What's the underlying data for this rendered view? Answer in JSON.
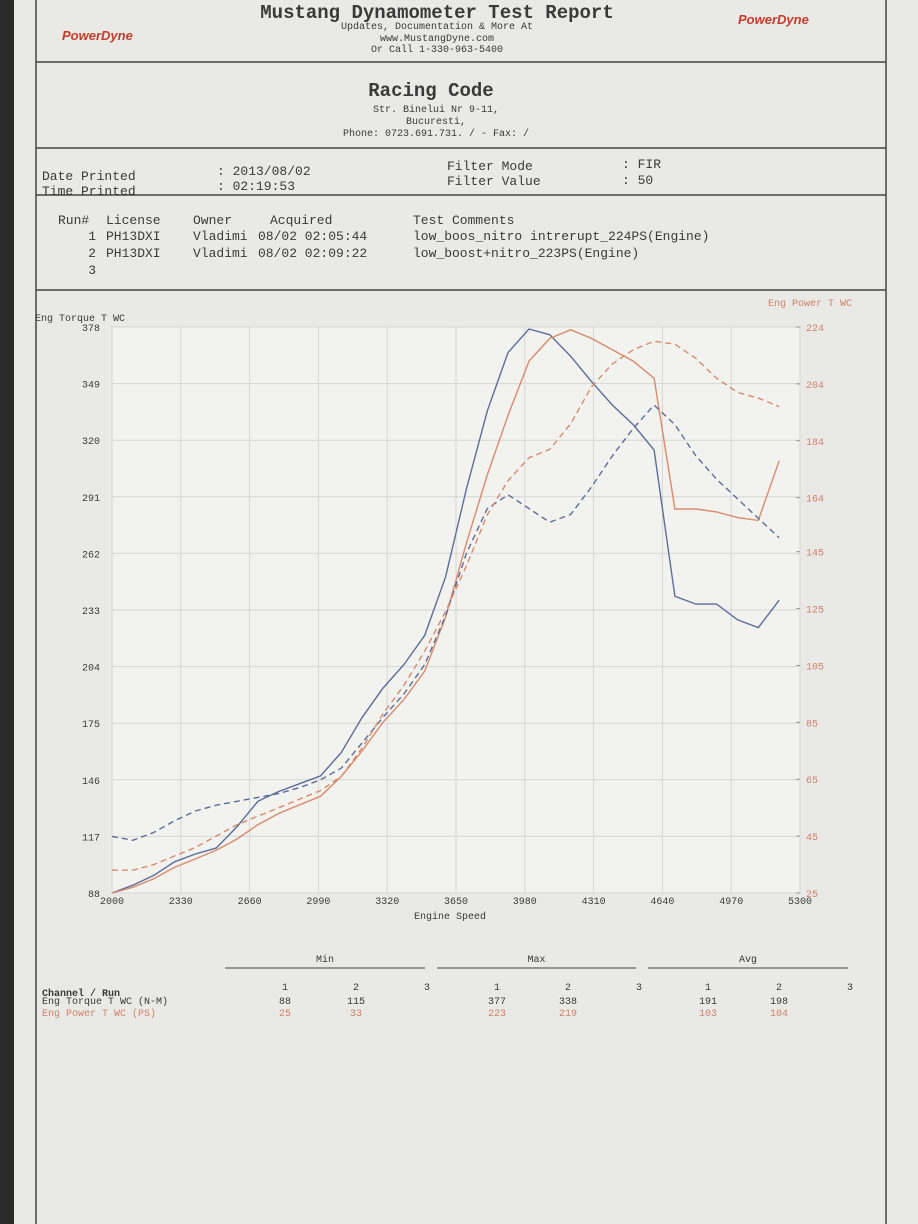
{
  "header": {
    "title": "Mustang Dynamometer Test Report",
    "lines": [
      "Updates, Documentation & More At",
      "www.MustangDyne.com",
      "Or Call 1-330-963-5400"
    ],
    "logo": "PowerDyne"
  },
  "shop": {
    "name": "Racing Code",
    "address": [
      "Str. Binelui Nr 9-11,",
      "Bucuresti,",
      "Phone: 0723.691.731. /  - Fax:  /"
    ]
  },
  "info": {
    "date_label": "Date Printed",
    "date": ": 2013/08/02",
    "time_label": "Time Printed",
    "time": ": 02:19:53",
    "filter_mode_label": "Filter Mode",
    "filter_mode": ": FIR",
    "filter_value_label": "Filter Value",
    "filter_value": ": 50"
  },
  "runs": {
    "columns": [
      "Run#",
      "License",
      "Owner",
      "Acquired",
      "Test Comments"
    ],
    "rows": [
      [
        "1",
        "PH13DXI",
        "Vladimi",
        "08/02 02:05:44",
        "low_boos_nitro intrerupt_224PS(Engine)"
      ],
      [
        "2",
        "PH13DXI",
        "Vladimi",
        "08/02 02:09:22",
        "low_boost+nitro_223PS(Engine)"
      ],
      [
        "3"
      ]
    ]
  },
  "chart_data": {
    "type": "line",
    "ylabel": "Eng Torque T WC",
    "y2label": "Eng Power T WC",
    "xlabel": "Engine Speed",
    "xlim": [
      2000,
      5300
    ],
    "xticks": [
      2000,
      2330,
      2660,
      2990,
      3320,
      3650,
      3980,
      4310,
      4640,
      4970,
      5300
    ],
    "ylim": [
      88,
      378
    ],
    "yticks": [
      88,
      117,
      146,
      175,
      204,
      233,
      262,
      291,
      320,
      349,
      378
    ],
    "y2lim": [
      25,
      224
    ],
    "y2ticks": [
      25,
      45,
      65,
      85,
      105,
      125,
      145,
      164,
      184,
      204,
      224
    ],
    "grid": true,
    "x": [
      2000,
      2100,
      2200,
      2300,
      2400,
      2500,
      2600,
      2700,
      2800,
      2900,
      3000,
      3100,
      3200,
      3300,
      3400,
      3500,
      3600,
      3700,
      3800,
      3900,
      4000,
      4100,
      4200,
      4300,
      4400,
      4500,
      4600,
      4700,
      4800,
      4900,
      5000,
      5100,
      5200
    ],
    "series": [
      {
        "color": "#5b6d9c",
        "style": "solid",
        "axis": "y",
        "values": [
          88,
          92,
          97,
          104,
          108,
          111,
          122,
          135,
          140,
          144,
          148,
          160,
          178,
          193,
          205,
          220,
          250,
          295,
          335,
          365,
          377,
          374,
          363,
          350,
          338,
          328,
          315,
          240,
          236,
          236,
          228,
          224,
          238
        ]
      },
      {
        "color": "#d98a6c",
        "style": "solid",
        "axis": "y2",
        "values": [
          25,
          27,
          30,
          34,
          37,
          40,
          44,
          49,
          53,
          56,
          59,
          66,
          75,
          85,
          93,
          103,
          122,
          148,
          172,
          193,
          212,
          220,
          223,
          220,
          216,
          212,
          206,
          160,
          160,
          159,
          157,
          156,
          177
        ]
      },
      {
        "color": "#5b6d9c",
        "style": "dashed",
        "axis": "y",
        "values": [
          117,
          115,
          119,
          125,
          130,
          133,
          135,
          137,
          139,
          142,
          146,
          152,
          165,
          178,
          190,
          205,
          230,
          262,
          285,
          292,
          285,
          278,
          282,
          296,
          312,
          326,
          338,
          328,
          312,
          300,
          290,
          280,
          270
        ]
      },
      {
        "color": "#d98a6c",
        "style": "dashed",
        "axis": "y2",
        "values": [
          33,
          33,
          35,
          38,
          41,
          45,
          49,
          52,
          55,
          58,
          61,
          66,
          76,
          88,
          98,
          110,
          124,
          140,
          158,
          170,
          178,
          181,
          190,
          203,
          211,
          216,
          219,
          218,
          213,
          206,
          201,
          199,
          196
        ]
      }
    ]
  },
  "summary": {
    "groups": [
      "Min",
      "Max",
      "Avg"
    ],
    "runs": [
      "1",
      "2",
      "3"
    ],
    "channel_header": "Channel / Run",
    "rows": [
      {
        "name": "Eng Torque T WC (N-M)",
        "min": [
          88,
          115
        ],
        "max": [
          377,
          338
        ],
        "avg": [
          191,
          198
        ]
      },
      {
        "name": "Eng Power T WC (PS)",
        "min": [
          25,
          33
        ],
        "max": [
          223,
          219
        ],
        "avg": [
          103,
          104
        ]
      }
    ]
  }
}
